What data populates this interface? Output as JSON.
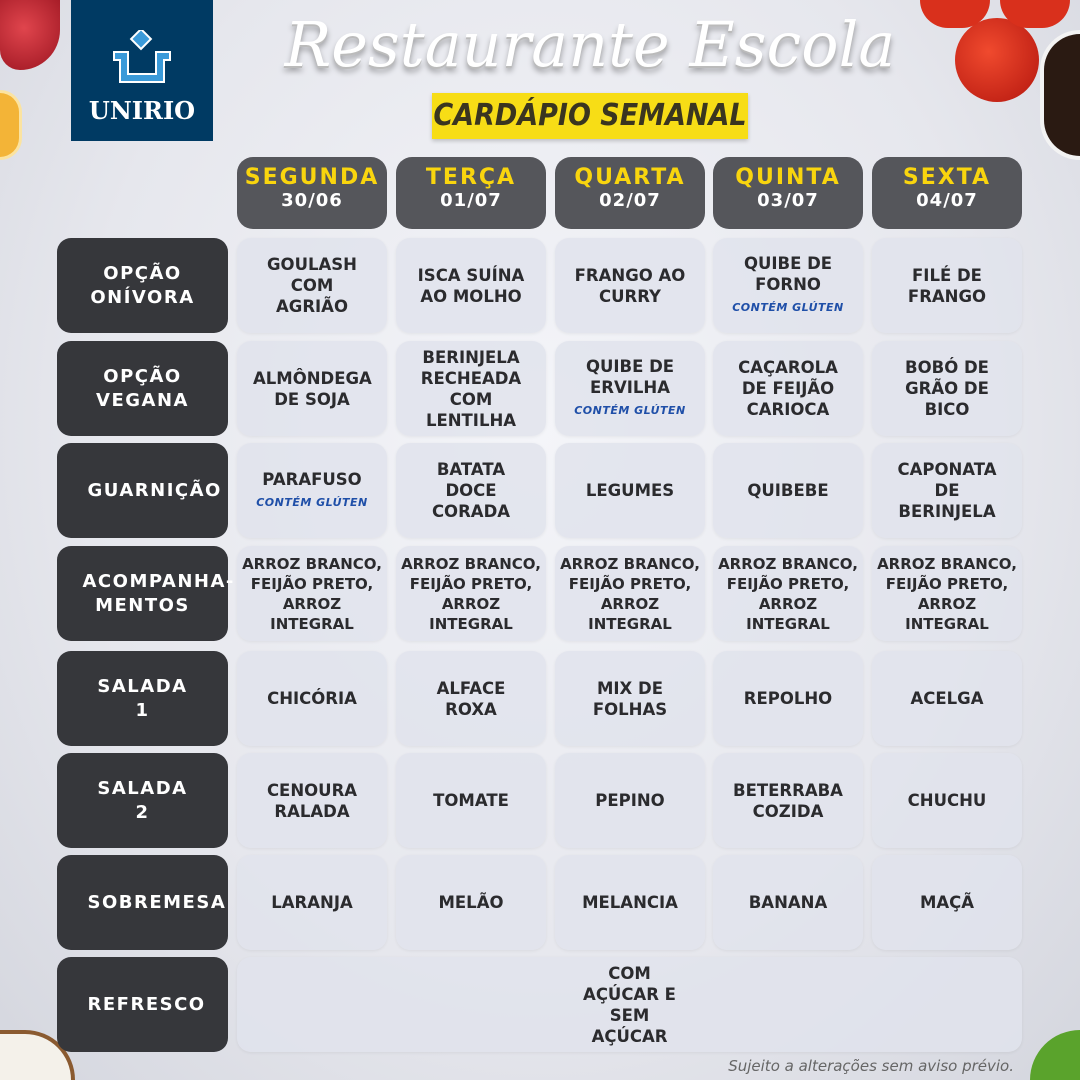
{
  "logo": {
    "text": "UNIRIO"
  },
  "title": "Restaurante Escola",
  "subtitle": "CARDÁPIO SEMANAL",
  "colors": {
    "header_bg": "#55565b",
    "label_bg": "#36373b",
    "day_name": "#f9d50e",
    "subtitle_bg": "#f7dd16",
    "gluten_note": "#1f4fa8",
    "logo_bg": "#003a63"
  },
  "days": [
    {
      "name": "SEGUNDA",
      "date": "30/06"
    },
    {
      "name": "TERÇA",
      "date": "01/07"
    },
    {
      "name": "QUARTA",
      "date": "02/07"
    },
    {
      "name": "QUINTA",
      "date": "03/07"
    },
    {
      "name": "SEXTA",
      "date": "04/07"
    }
  ],
  "rows": [
    {
      "label": "OPÇÃO ONÍVORA",
      "cells": [
        {
          "text": "GOULASH COM AGRIÃO"
        },
        {
          "text": "ISCA SUÍNA AO MOLHO"
        },
        {
          "text": "FRANGO AO CURRY"
        },
        {
          "text": "QUIBE DE FORNO",
          "note": "CONTÉM GLÚTEN"
        },
        {
          "text": "FILÉ DE FRANGO"
        }
      ]
    },
    {
      "label": "OPÇÃO VEGANA",
      "cells": [
        {
          "text": "ALMÔNDEGA DE SOJA"
        },
        {
          "text": "BERINJELA RECHEADA COM LENTILHA"
        },
        {
          "text": "QUIBE DE ERVILHA",
          "note": "CONTÉM GLÚTEN"
        },
        {
          "text": "CAÇAROLA DE FEIJÃO CARIOCA"
        },
        {
          "text": "BOBÓ DE GRÃO DE BICO"
        }
      ]
    },
    {
      "label": "GUARNIÇÃO",
      "cells": [
        {
          "text": "PARAFUSO",
          "note": "CONTÉM GLÚTEN"
        },
        {
          "text": "BATATA DOCE CORADA"
        },
        {
          "text": "LEGUMES"
        },
        {
          "text": "QUIBEBE"
        },
        {
          "text": "CAPONATA DE BERINJELA"
        }
      ]
    },
    {
      "label": "ACOMPANHA-MENTOS",
      "cells": [
        {
          "text": "ARROZ BRANCO, FEIJÃO PRETO, ARROZ INTEGRAL"
        },
        {
          "text": "ARROZ BRANCO, FEIJÃO PRETO, ARROZ INTEGRAL"
        },
        {
          "text": "ARROZ BRANCO, FEIJÃO PRETO, ARROZ INTEGRAL"
        },
        {
          "text": "ARROZ BRANCO, FEIJÃO PRETO, ARROZ INTEGRAL"
        },
        {
          "text": "ARROZ BRANCO, FEIJÃO PRETO, ARROZ INTEGRAL"
        }
      ]
    },
    {
      "label": "SALADA 1",
      "cells": [
        {
          "text": "CHICÓRIA"
        },
        {
          "text": "ALFACE ROXA"
        },
        {
          "text": "MIX DE FOLHAS"
        },
        {
          "text": "REPOLHO"
        },
        {
          "text": "ACELGA"
        }
      ]
    },
    {
      "label": "SALADA 2",
      "cells": [
        {
          "text": "CENOURA RALADA"
        },
        {
          "text": "TOMATE"
        },
        {
          "text": "PEPINO"
        },
        {
          "text": "BETERRABA COZIDA"
        },
        {
          "text": "CHUCHU"
        }
      ]
    },
    {
      "label": "SOBREMESA",
      "cells": [
        {
          "text": "LARANJA"
        },
        {
          "text": "MELÃO"
        },
        {
          "text": "MELANCIA"
        },
        {
          "text": "BANANA"
        },
        {
          "text": "MAÇÃ"
        }
      ]
    },
    {
      "label": "REFRESCO",
      "cells": [
        {
          "text": "COM AÇÚCAR E SEM AÇÚCAR"
        }
      ]
    }
  ],
  "footer": "Sujeito a alterações sem aviso prévio."
}
